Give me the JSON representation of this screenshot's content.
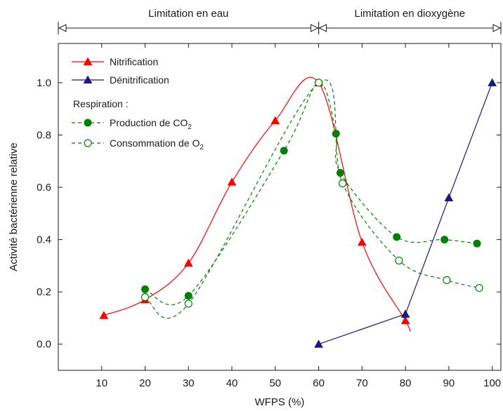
{
  "chart_data": {
    "type": "line",
    "xlabel": "WFPS (%)",
    "ylabel": "Activité bactérienne relative",
    "xlim": [
      0,
      102
    ],
    "ylim": [
      -0.1,
      1.15
    ],
    "xticks": [
      10,
      20,
      30,
      40,
      50,
      60,
      70,
      80,
      90,
      100
    ],
    "yticks": [
      0.0,
      0.2,
      0.4,
      0.6,
      0.8,
      1.0
    ],
    "ytick_labels": [
      "0.0",
      "0.2",
      "0.4",
      "0.6",
      "0.8",
      "1.0"
    ],
    "regions": [
      {
        "label": "Limitation en eau",
        "x_start": 0,
        "x_end": 60
      },
      {
        "label": "Limitation en dioxygène",
        "x_start": 60,
        "x_end": 102
      }
    ],
    "legend_position": "top-left",
    "legend_group_title": "Respiration :",
    "series": [
      {
        "name": "Nitrification",
        "color": "#ff0000",
        "marker": "triangle",
        "line": "solid",
        "points": [
          [
            10.5,
            0.11
          ],
          [
            20,
            0.17
          ],
          [
            30,
            0.31
          ],
          [
            40,
            0.62
          ],
          [
            50,
            0.855
          ],
          [
            60,
            1.0
          ],
          [
            70,
            0.39
          ],
          [
            80,
            0.09
          ]
        ]
      },
      {
        "name": "Dénitrification",
        "color": "#1a1a80",
        "marker": "triangle",
        "line": "solid",
        "points": [
          [
            60,
            0.0
          ],
          [
            80,
            0.115
          ],
          [
            90,
            0.56
          ],
          [
            100,
            1.0
          ]
        ]
      },
      {
        "name": "Production de CO2",
        "name_main": "Production de CO",
        "name_sub": "2",
        "color": "#008000",
        "marker": "filled-circle",
        "line": "dashed",
        "points": [
          [
            20,
            0.21
          ],
          [
            30,
            0.185
          ],
          [
            52,
            0.74
          ],
          [
            60,
            1.0
          ],
          [
            64,
            0.805
          ],
          [
            65,
            0.655
          ],
          [
            78,
            0.41
          ],
          [
            89,
            0.4
          ],
          [
            96.5,
            0.385
          ]
        ]
      },
      {
        "name": "Consommation de O2",
        "name_main": "Consommation de O",
        "name_sub": "2",
        "color": "#008000",
        "marker": "open-circle",
        "line": "dashed",
        "points": [
          [
            20,
            0.18
          ],
          [
            30,
            0.155
          ],
          [
            60,
            1.0
          ],
          [
            65.5,
            0.615
          ],
          [
            78.5,
            0.32
          ],
          [
            89.5,
            0.245
          ],
          [
            97,
            0.215
          ]
        ]
      }
    ]
  }
}
